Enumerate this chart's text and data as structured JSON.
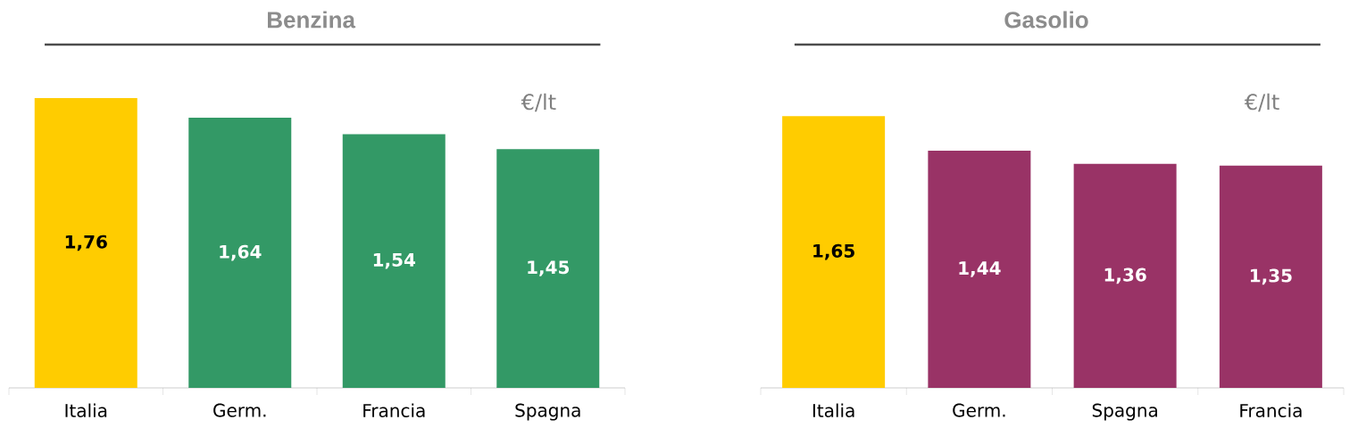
{
  "chart_data": [
    {
      "type": "bar",
      "title": "Benzina",
      "categories": [
        "Italia",
        "Germ.",
        "Francia",
        "Spagna"
      ],
      "values": [
        1.76,
        1.64,
        1.54,
        1.45
      ],
      "value_labels": [
        "1,76",
        "1,64",
        "1,54",
        "1,45"
      ],
      "colors": [
        "#ffcc00",
        "#339966",
        "#339966",
        "#339966"
      ],
      "annotations": [
        "€/lt"
      ]
    },
    {
      "type": "bar",
      "title": "Gasolio",
      "categories": [
        "Italia",
        "Germ.",
        "Spagna",
        "Francia"
      ],
      "values": [
        1.65,
        1.44,
        1.36,
        1.35
      ],
      "value_labels": [
        "1,65",
        "1,44",
        "1,36",
        "1,35"
      ],
      "colors": [
        "#ffcc00",
        "#993366",
        "#993366",
        "#993366"
      ],
      "annotations": [
        "€/lt"
      ]
    }
  ]
}
